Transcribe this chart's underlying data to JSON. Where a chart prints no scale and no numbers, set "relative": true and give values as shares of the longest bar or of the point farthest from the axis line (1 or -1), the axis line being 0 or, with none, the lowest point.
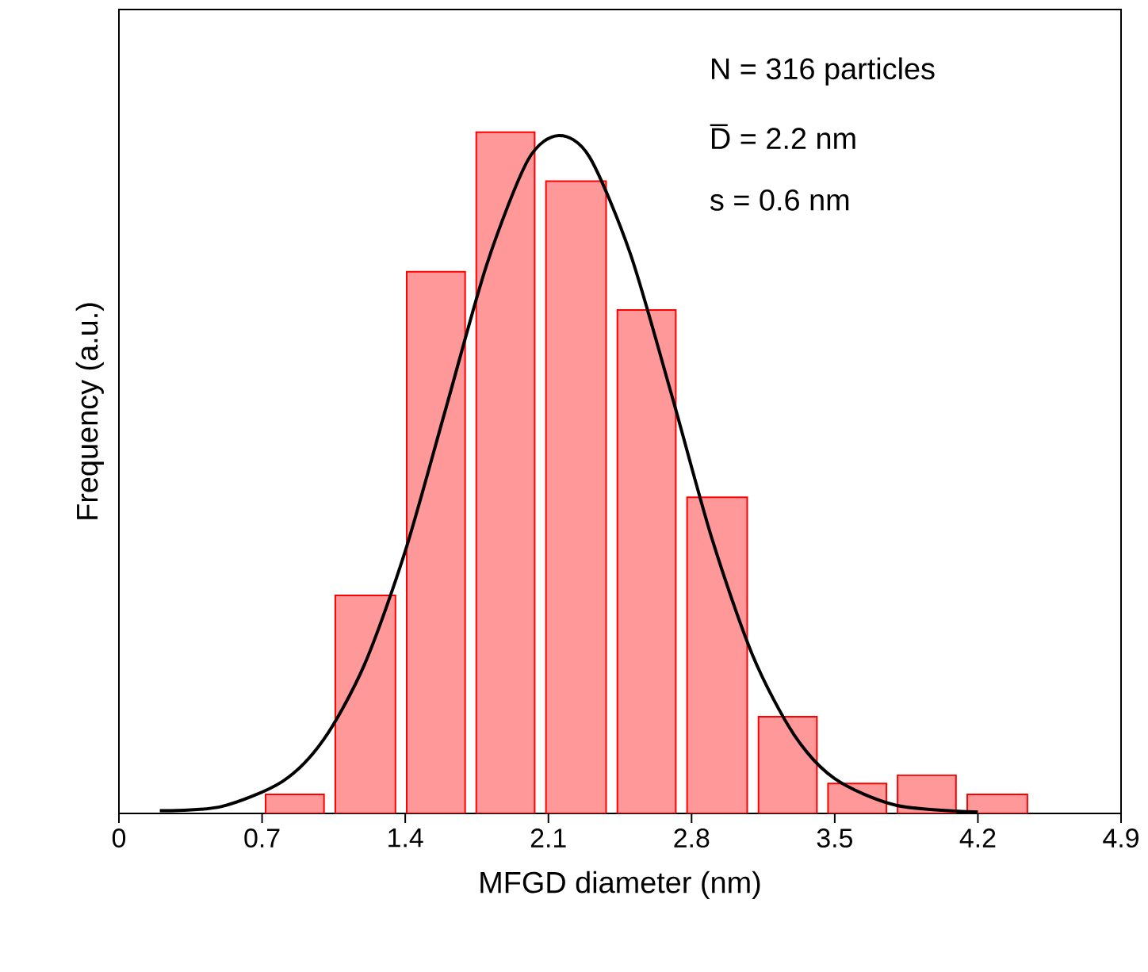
{
  "chart_data": {
    "type": "histogram",
    "relative": true,
    "xlabel": "MFGD diameter (nm)",
    "ylabel": "Frequency (a.u.)",
    "xlim": [
      0,
      4.9
    ],
    "xticks": [
      0,
      0.7,
      1.4,
      2.1,
      2.8,
      3.5,
      4.2,
      4.9
    ],
    "annotations": [
      "N = 316 particles",
      "D̅ = 2.2 nm",
      "s = 0.6 nm"
    ],
    "series": [
      {
        "color": "#ff0000",
        "bins": [
          0.69,
          1.03,
          1.38,
          1.72,
          2.06,
          2.41,
          2.75,
          3.1,
          3.44,
          3.78,
          4.12,
          4.47
        ],
        "values": [
          0.028,
          0.32,
          0.795,
          1,
          0.928,
          0.739,
          0.464,
          0.142,
          0.044,
          0.056,
          0.028
        ]
      },
      {
        "type": "line",
        "color": "#000000",
        "x": [
          0.2,
          0.5,
          0.8,
          1.0,
          1.2,
          1.4,
          1.6,
          1.8,
          2.0,
          2.15,
          2.3,
          2.5,
          2.7,
          2.9,
          3.1,
          3.3,
          3.5,
          3.8,
          4.2
        ],
        "values": [
          0.004,
          0.01,
          0.047,
          0.108,
          0.218,
          0.385,
          0.596,
          0.807,
          0.959,
          0.995,
          0.964,
          0.822,
          0.617,
          0.403,
          0.231,
          0.116,
          0.051,
          0.012,
          0.002
        ]
      }
    ]
  }
}
